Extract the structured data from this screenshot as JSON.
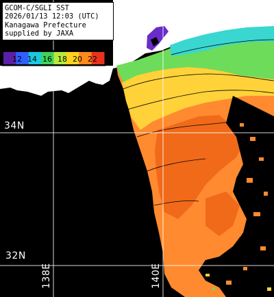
{
  "header": {
    "line1": "GCOM-C/SGLI SST",
    "line2": "2026/01/13 12:03 (UTC)",
    "line3": "Kanagawa Prefecture",
    "line4": "supplied by JAXA"
  },
  "legend": {
    "labels": [
      "12",
      "14",
      "16",
      "18",
      "20",
      "22"
    ],
    "colors": [
      "#5b1fa8",
      "#2f5fff",
      "#19c9e0",
      "#3fd25a",
      "#b8e83a",
      "#ffd21e",
      "#ff8a1c",
      "#e8341a"
    ]
  },
  "grid": {
    "lat_labels": [
      "34N",
      "32N"
    ],
    "lon_labels": [
      "138E",
      "140E"
    ]
  },
  "colors": {
    "land": "#000000",
    "cloud": "#ffffff",
    "grid": "#ffffff",
    "warm": "#ff8a30",
    "hot": "#f06a1a",
    "mid": "#ffd23a",
    "green": "#6ddc5a",
    "cyan": "#39d7d0"
  }
}
